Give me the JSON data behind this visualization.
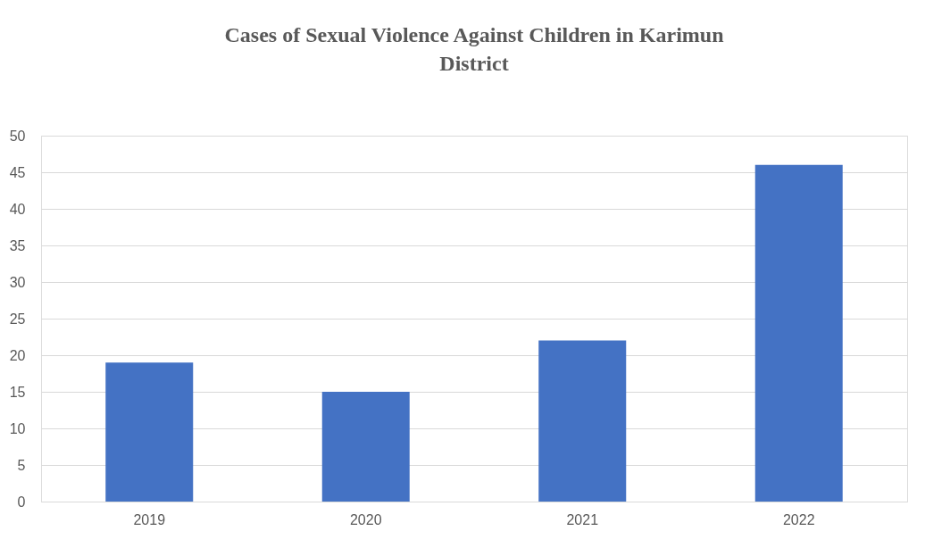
{
  "chart_data": {
    "type": "bar",
    "title": [
      "Cases of Sexual Violence Against Children in Karimun",
      "District"
    ],
    "categories": [
      "2019",
      "2020",
      "2021",
      "2022"
    ],
    "values": [
      19,
      15,
      22,
      46
    ],
    "color": "#4472c4",
    "ylim": [
      0,
      50
    ],
    "yticks": [
      0,
      5,
      10,
      15,
      20,
      25,
      30,
      35,
      40,
      45,
      50
    ],
    "grid": "y"
  }
}
